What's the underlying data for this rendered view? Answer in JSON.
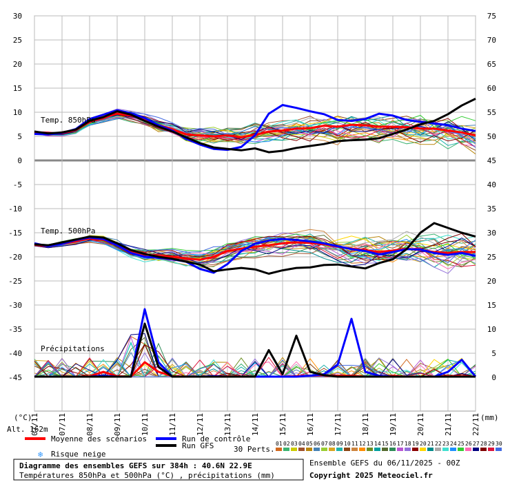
{
  "chart_data": {
    "type": "line",
    "title": "Diagramme des ensembles GEFS sur 384h : 40.6N 22.9E",
    "subtitle": "Températures 850hPa et 500hPa (°C) , précipitations (mm)",
    "run_label": "Ensemble GEFS du 06/11/2025 - 00Z",
    "copyright": "Copyright 2025 Meteociel.fr",
    "altitude_label": "Alt. 162m",
    "left_axis": {
      "unit": "(°C)",
      "ticks": [
        30,
        25,
        20,
        15,
        10,
        5,
        0,
        -5,
        -10,
        -15,
        -20,
        -25,
        -30,
        -35,
        -40,
        -45
      ]
    },
    "right_axis": {
      "unit": "(mm)",
      "ticks": [
        75,
        70,
        65,
        60,
        55,
        50,
        45,
        40,
        35,
        30,
        25,
        20,
        15,
        10,
        5,
        0
      ]
    },
    "x_ticks": [
      "07/11",
      "07/11",
      "08/11",
      "09/11",
      "10/11",
      "11/11",
      "12/11",
      "13/11",
      "14/11",
      "15/11",
      "16/11",
      "17/11",
      "18/11",
      "19/11",
      "20/11",
      "21/11",
      "22/11"
    ],
    "panel_labels": {
      "t850": "Temp. 850hPa",
      "t500": "Temp. 500hPa",
      "precip": "Précipitations"
    },
    "legend": {
      "mean": "Moyenne des scénarios",
      "control": "Run de contrôle",
      "gfs": "Run GFS",
      "snow": "Risque neige",
      "perts": "30 Perts."
    },
    "colors": {
      "mean": "#ff0000",
      "control": "#0000ff",
      "gfs": "#000000",
      "grid": "#bbbbbb"
    },
    "pert_ids": [
      "01",
      "02",
      "03",
      "04",
      "05",
      "06",
      "07",
      "08",
      "09",
      "10",
      "11",
      "12",
      "13",
      "14",
      "15",
      "16",
      "17",
      "18",
      "19",
      "20",
      "21",
      "22",
      "23",
      "24",
      "25",
      "26",
      "27",
      "28",
      "29",
      "30"
    ],
    "pert_colors": [
      "#d2691e",
      "#3cb371",
      "#cccc00",
      "#a0522d",
      "#b8860b",
      "#4682b4",
      "#9acd32",
      "#daa520",
      "#20b2aa",
      "#8b4513",
      "#cd853f",
      "#ff8c00",
      "#6b8e23",
      "#00a0a0",
      "#556b2f",
      "#2e8b57",
      "#ba55d3",
      "#9370db",
      "#8b0000",
      "#ffd700",
      "#008b8b",
      "#a9a9a9",
      "#40e0d0",
      "#1e90ff",
      "#32cd32",
      "#ff69b4",
      "#000080",
      "#800000",
      "#dc143c",
      "#4169e1"
    ],
    "series": [
      {
        "name": "Moyenne 850hPa",
        "x": [
          0,
          12,
          24,
          36,
          48,
          60,
          72,
          84,
          96,
          108,
          120,
          132,
          144,
          156,
          168,
          180,
          192,
          204,
          216,
          228,
          240,
          252,
          264,
          276,
          288,
          300,
          312,
          324,
          336,
          348,
          360,
          372,
          384
        ],
        "y": [
          5.8,
          5.5,
          5.6,
          6.3,
          8.0,
          8.9,
          9.7,
          9.3,
          8.5,
          7.3,
          6.5,
          5.4,
          5.2,
          5.0,
          5.2,
          4.8,
          5.3,
          6.0,
          6.2,
          6.6,
          6.7,
          7.2,
          7.0,
          7.4,
          7.3,
          7.0,
          7.0,
          6.9,
          6.6,
          6.6,
          6.2,
          5.8,
          5.2
        ]
      },
      {
        "name": "Moyenne 500hPa",
        "x": [
          0,
          12,
          24,
          36,
          48,
          60,
          72,
          84,
          96,
          108,
          120,
          132,
          144,
          156,
          168,
          180,
          192,
          204,
          216,
          228,
          240,
          252,
          264,
          276,
          288,
          300,
          312,
          324,
          336,
          348,
          360,
          372,
          384
        ],
        "y": [
          -17.5,
          -17.8,
          -17.3,
          -16.8,
          -16.2,
          -16.5,
          -17.5,
          -18.8,
          -19.5,
          -19.8,
          -20.0,
          -20.3,
          -20.6,
          -20.0,
          -18.8,
          -18.3,
          -17.9,
          -17.6,
          -17.2,
          -17.0,
          -17.1,
          -17.4,
          -17.9,
          -18.3,
          -18.6,
          -19.0,
          -18.7,
          -18.3,
          -18.6,
          -19.0,
          -19.2,
          -19.0,
          -19.0
        ]
      },
      {
        "name": "Moyenne précipitations",
        "x": [
          0,
          12,
          24,
          36,
          48,
          60,
          72,
          84,
          96,
          108,
          120,
          132,
          144,
          156,
          168,
          180,
          192,
          204,
          216,
          228,
          240,
          252,
          264,
          276,
          288,
          300,
          312,
          324,
          336,
          348,
          360,
          372,
          384
        ],
        "y": [
          0,
          0,
          0,
          0,
          0.1,
          1,
          0.1,
          0,
          3,
          1,
          0.1,
          0,
          0,
          0.1,
          0.1,
          0,
          0,
          0,
          0,
          0.1,
          0.2,
          0.3,
          0.2,
          0.2,
          0,
          0,
          0.2,
          0,
          0,
          0,
          0.1,
          0.1,
          0
        ]
      },
      {
        "name": "Contrôle 850hPa",
        "x": [
          0,
          12,
          24,
          36,
          48,
          60,
          72,
          84,
          96,
          108,
          120,
          132,
          144,
          156,
          168,
          180,
          192,
          204,
          216,
          228,
          240,
          252,
          264,
          276,
          288,
          300,
          312,
          324,
          336,
          348,
          360,
          372,
          384
        ],
        "y": [
          5.5,
          5.4,
          5.7,
          6.5,
          8.6,
          9.5,
          10.4,
          9.8,
          8.8,
          7.3,
          6.2,
          4.5,
          3.3,
          2.4,
          2.2,
          2.8,
          5.2,
          9.7,
          11.5,
          10.9,
          10.2,
          9.6,
          8.4,
          8.2,
          8.6,
          9.7,
          9.3,
          8.4,
          8.0,
          7.7,
          7.3,
          6.6,
          6.1
        ]
      },
      {
        "name": "Contrôle 500hPa",
        "x": [
          0,
          12,
          24,
          36,
          48,
          60,
          72,
          84,
          96,
          108,
          120,
          132,
          144,
          156,
          168,
          180,
          192,
          204,
          216,
          228,
          240,
          252,
          264,
          276,
          288,
          300,
          312,
          324,
          336,
          348,
          360,
          372,
          384
        ],
        "y": [
          -17.2,
          -17.8,
          -17.3,
          -16.5,
          -16.0,
          -16.3,
          -17.6,
          -19.2,
          -20.0,
          -20.2,
          -20.5,
          -21.0,
          -22.5,
          -23.3,
          -21.5,
          -18.8,
          -17.3,
          -16.6,
          -16.3,
          -16.5,
          -16.8,
          -17.2,
          -17.8,
          -18.4,
          -18.8,
          -19.5,
          -19.0,
          -18.4,
          -18.5,
          -19.2,
          -19.6,
          -19.2,
          -19.8
        ]
      },
      {
        "name": "Contrôle précipitations",
        "x": [
          0,
          12,
          24,
          36,
          48,
          60,
          72,
          84,
          96,
          108,
          120,
          132,
          144,
          156,
          168,
          180,
          192,
          204,
          216,
          228,
          240,
          252,
          264,
          276,
          288,
          300,
          312,
          324,
          336,
          348,
          360,
          372,
          384
        ],
        "y": [
          0,
          0,
          0,
          0,
          0,
          0.2,
          0,
          0,
          14,
          3,
          0,
          0,
          0,
          0.1,
          0,
          0,
          0,
          0,
          0,
          0,
          0.2,
          0.5,
          2.5,
          12,
          1,
          0.2,
          0,
          0,
          0,
          0,
          1,
          3.5,
          0
        ]
      },
      {
        "name": "GFS 850hPa",
        "x": [
          0,
          12,
          24,
          36,
          48,
          60,
          72,
          84,
          96,
          108,
          120,
          132,
          144,
          156,
          168,
          180,
          192,
          204,
          216,
          228,
          240,
          252,
          264,
          276,
          288,
          300,
          312,
          324,
          336,
          348,
          360,
          372,
          384
        ],
        "y": [
          6.0,
          5.6,
          5.8,
          6.4,
          8.2,
          9.0,
          10.2,
          9.5,
          8.2,
          7.0,
          6.0,
          4.8,
          3.6,
          2.7,
          2.4,
          2.1,
          2.5,
          1.7,
          2.0,
          2.6,
          3.0,
          3.4,
          4.0,
          4.2,
          4.3,
          4.6,
          5.5,
          6.4,
          7.5,
          8.2,
          9.6,
          11.4,
          12.8
        ]
      },
      {
        "name": "GFS 500hPa",
        "x": [
          0,
          12,
          24,
          36,
          48,
          60,
          72,
          84,
          96,
          108,
          120,
          132,
          144,
          156,
          168,
          180,
          192,
          204,
          216,
          228,
          240,
          252,
          264,
          276,
          288,
          300,
          312,
          324,
          336,
          348,
          360,
          372,
          384
        ],
        "y": [
          -17.4,
          -17.6,
          -17.0,
          -16.4,
          -15.8,
          -16.0,
          -17.2,
          -18.6,
          -19.4,
          -20.0,
          -20.4,
          -21.0,
          -21.6,
          -23.0,
          -22.6,
          -22.3,
          -22.6,
          -23.5,
          -22.8,
          -22.3,
          -22.2,
          -21.7,
          -21.6,
          -22.0,
          -22.4,
          -21.3,
          -20.5,
          -18.4,
          -15.0,
          -13.0,
          -14.0,
          -15.0,
          -15.8
        ]
      },
      {
        "name": "GFS précipitations",
        "x": [
          0,
          12,
          24,
          36,
          48,
          60,
          72,
          84,
          96,
          108,
          120,
          132,
          144,
          156,
          168,
          180,
          192,
          204,
          216,
          228,
          240,
          252,
          264,
          276,
          288,
          300,
          312,
          324,
          336,
          348,
          360,
          372,
          384
        ],
        "y": [
          0,
          0,
          0,
          0,
          0,
          0,
          0,
          0,
          11,
          2,
          0,
          0,
          0,
          0,
          0,
          0,
          0,
          5.5,
          0.5,
          8.5,
          1,
          0.3,
          0,
          0,
          0,
          0,
          0,
          0,
          0,
          0,
          0,
          0,
          0
        ]
      }
    ],
    "ensemble_members_note_omitted": false,
    "ylim_left": [
      -45,
      30
    ],
    "ylim_right": [
      0,
      75
    ],
    "xlim_hours": [
      0,
      384
    ],
    "grid": true
  }
}
